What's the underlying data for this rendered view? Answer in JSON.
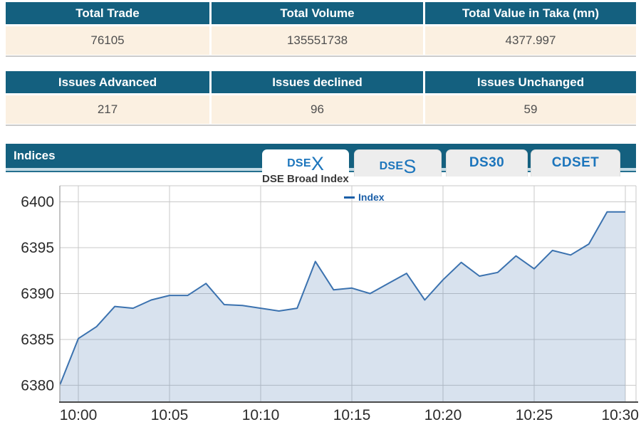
{
  "colors": {
    "teal": "#14607F",
    "cream": "#FBF0E1",
    "tab_blue": "#1C75BC",
    "value_text": "#4F4F4F",
    "legend_blue": "#1B5FA8"
  },
  "tables": [
    {
      "headers": [
        "Total Trade",
        "Total Volume",
        "Total Value in Taka (mn)"
      ],
      "values": [
        "76105",
        "135551738",
        "4377.997"
      ]
    },
    {
      "headers": [
        "Issues Advanced",
        "Issues declined",
        "Issues Unchanged"
      ],
      "values": [
        "217",
        "96",
        "59"
      ]
    }
  ],
  "indices": {
    "title": "Indices",
    "tabs": [
      {
        "small": "DSE",
        "big": "X",
        "active": true
      },
      {
        "small": "DSE",
        "big": "S",
        "active": false
      },
      {
        "label": "DS30",
        "active": false
      },
      {
        "label": "CDSET",
        "active": false
      }
    ]
  },
  "chart_data": {
    "type": "area",
    "title": "DSE Broad Index",
    "legend_position": "top-center",
    "grid": true,
    "x_ticks": [
      "10:00",
      "10:05",
      "10:10",
      "10:15",
      "10:20",
      "10:25",
      "10:30"
    ],
    "y_ticks": [
      6380,
      6385,
      6390,
      6395,
      6400
    ],
    "ylim": [
      6378.25,
      6401.75
    ],
    "x": [
      "09:59",
      "10:00",
      "10:01",
      "10:02",
      "10:03",
      "10:04",
      "10:05",
      "10:06",
      "10:07",
      "10:08",
      "10:09",
      "10:10",
      "10:11",
      "10:12",
      "10:13",
      "10:14",
      "10:15",
      "10:16",
      "10:17",
      "10:18",
      "10:19",
      "10:20",
      "10:21",
      "10:22",
      "10:23",
      "10:24",
      "10:25",
      "10:26",
      "10:27",
      "10:28",
      "10:29",
      "10:30"
    ],
    "series": [
      {
        "name": "Index",
        "values": [
          6380.1,
          6385.1,
          6386.4,
          6388.6,
          6388.4,
          6389.3,
          6389.8,
          6389.8,
          6391.1,
          6388.8,
          6388.7,
          6388.4,
          6388.1,
          6388.4,
          6393.5,
          6390.4,
          6390.6,
          6390.0,
          6391.1,
          6392.2,
          6389.3,
          6391.5,
          6393.4,
          6391.9,
          6392.3,
          6394.1,
          6392.7,
          6394.7,
          6394.2,
          6395.4,
          6398.9,
          6398.9
        ]
      }
    ],
    "colors": {
      "line": "#3B72AF",
      "fill": "rgba(93,133,184,0.24)",
      "grid": "#C8C8C8",
      "axis": "#4A4A4A",
      "tick": "#2B2B2B"
    }
  }
}
